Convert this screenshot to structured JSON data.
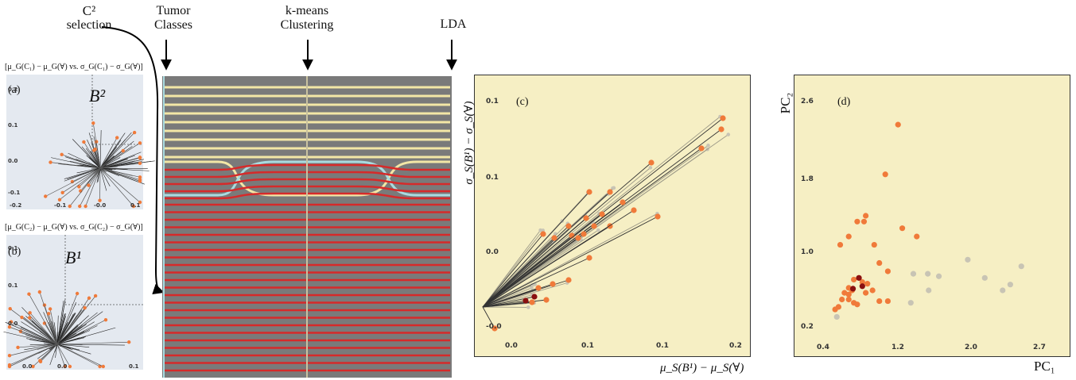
{
  "headers": {
    "c2_selection": [
      "C²",
      "selection"
    ],
    "tumor_classes": [
      "Tumor",
      "Classes"
    ],
    "kmeans": [
      "k-means",
      "Clustering"
    ],
    "lda": "LDA"
  },
  "small_plots": [
    {
      "caption": "[μ_G(C₁) − μ_G(∀) vs. σ_G(C₁) − σ_G(∀)]",
      "panel_label": "(a)",
      "region_label": "B²",
      "yticks": [
        "0.2",
        "0.1",
        "0.0",
        "-0.1"
      ],
      "xticks": [
        "-0.2",
        "-0.1",
        "-0.0",
        "0.1"
      ]
    },
    {
      "caption": "[μ_G(C₂) − μ_G(∀) vs. σ_G(C₂) − σ_G(∀)]",
      "panel_label": "(b)",
      "region_label": "B¹",
      "yticks": [
        "0.1",
        "0.1",
        "0.0"
      ],
      "xticks": [
        "0.0",
        "0.0",
        "0.1"
      ]
    }
  ],
  "panel_c": {
    "label": "(c)",
    "ylabel": "σ_S(B¹) − σ_S(∀)",
    "xlabel": "μ_S(B¹) − μ_S(∀)",
    "yticks": [
      "0.1",
      "0.1",
      "0.0",
      "-0.0"
    ],
    "xticks": [
      "0.0",
      "0.1",
      "0.1",
      "0.2"
    ]
  },
  "panel_d": {
    "label": "(d)",
    "ylabel": "PC₂",
    "xlabel": "PC₁",
    "yticks": [
      "2.6",
      "1.8",
      "1.0",
      "0.2"
    ],
    "xticks": [
      "0.4",
      "1.2",
      "2.0",
      "2.7"
    ]
  },
  "colors": {
    "orange": "#f07a3a",
    "dark_red": "#8a1010",
    "grey_point": "#c8c4b4",
    "yellow_line": "#f3e7a6",
    "red_line": "#d62a2a",
    "cyan_line": "#a9dbe0",
    "band_bg": "#7a7a7a"
  },
  "chart_data": [
    {
      "type": "scatter",
      "title": "(d)",
      "xlabel": "PC₁",
      "ylabel": "PC₂",
      "xlim": [
        0.2,
        2.8
      ],
      "ylim": [
        0.1,
        2.8
      ],
      "series": [
        {
          "color": "orange",
          "points": [
            [
              1.1,
              2.55
            ],
            [
              0.95,
              1.95
            ],
            [
              0.72,
              1.45
            ],
            [
              0.7,
              1.38
            ],
            [
              0.62,
              1.38
            ],
            [
              1.15,
              1.3
            ],
            [
              1.32,
              1.2
            ],
            [
              0.52,
              1.2
            ],
            [
              0.42,
              1.1
            ],
            [
              0.82,
              1.1
            ],
            [
              0.88,
              0.88
            ],
            [
              0.98,
              0.78
            ],
            [
              0.58,
              0.68
            ],
            [
              0.64,
              0.7
            ],
            [
              0.68,
              0.65
            ],
            [
              0.74,
              0.63
            ],
            [
              0.52,
              0.58
            ],
            [
              0.56,
              0.55
            ],
            [
              0.72,
              0.52
            ],
            [
              0.8,
              0.55
            ],
            [
              0.47,
              0.52
            ],
            [
              0.52,
              0.5
            ],
            [
              0.44,
              0.44
            ],
            [
              0.52,
              0.44
            ],
            [
              0.58,
              0.4
            ],
            [
              0.4,
              0.35
            ],
            [
              0.62,
              0.38
            ],
            [
              0.88,
              0.42
            ],
            [
              0.98,
              0.42
            ],
            [
              0.36,
              0.32
            ]
          ]
        },
        {
          "color": "dark_red",
          "points": [
            [
              0.64,
              0.7
            ],
            [
              0.68,
              0.6
            ],
            [
              0.57,
              0.57
            ]
          ]
        },
        {
          "color": "grey_point",
          "points": [
            [
              1.92,
              0.92
            ],
            [
              2.55,
              0.84
            ],
            [
              1.28,
              0.75
            ],
            [
              1.45,
              0.75
            ],
            [
              1.58,
              0.72
            ],
            [
              2.12,
              0.7
            ],
            [
              2.42,
              0.62
            ],
            [
              2.33,
              0.55
            ],
            [
              1.46,
              0.55
            ],
            [
              1.25,
              0.4
            ],
            [
              0.38,
              0.23
            ]
          ]
        }
      ]
    }
  ]
}
